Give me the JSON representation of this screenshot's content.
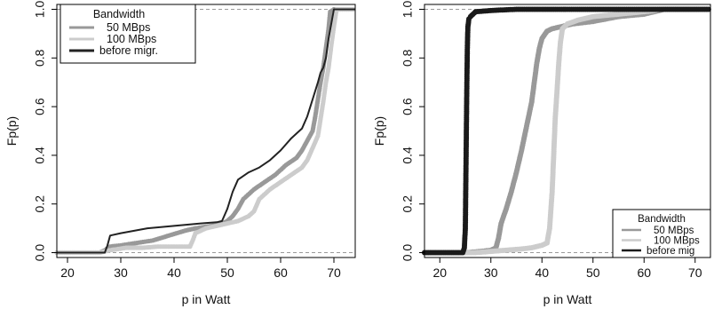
{
  "chart_data": [
    {
      "type": "line",
      "xlabel": "p in Watt",
      "ylabel": "Fp(p)",
      "xlim": [
        18,
        74
      ],
      "ylim": [
        -0.02,
        1.02
      ],
      "xticks": [
        20,
        30,
        40,
        50,
        60,
        70
      ],
      "yticks": [
        0.0,
        0.2,
        0.4,
        0.6,
        0.8,
        1.0
      ],
      "xtick_labels": [
        "20",
        "30",
        "40",
        "50",
        "60",
        "70"
      ],
      "ytick_labels": [
        "0.0",
        "0.2",
        "0.4",
        "0.6",
        "0.8",
        "1.0"
      ],
      "hlines": [
        0,
        1
      ],
      "legend": {
        "title": "Bandwidth",
        "placement": "top-left",
        "entries": [
          "50 MBps",
          "100 MBps",
          "before migr."
        ]
      },
      "series": [
        {
          "name": "50 MBps",
          "color": "#999999",
          "marker": "point",
          "x": [
            18,
            26,
            27,
            28,
            30,
            33,
            36,
            39,
            42,
            44,
            47,
            49,
            50,
            51,
            52,
            53,
            55,
            57,
            59,
            61,
            63,
            64,
            65,
            66,
            66.5,
            67,
            67.5,
            68,
            68.5,
            69,
            69.3,
            70,
            72,
            74
          ],
          "y": [
            0,
            0,
            0.01,
            0.025,
            0.03,
            0.04,
            0.05,
            0.07,
            0.09,
            0.1,
            0.11,
            0.12,
            0.13,
            0.15,
            0.18,
            0.22,
            0.26,
            0.29,
            0.32,
            0.36,
            0.39,
            0.42,
            0.46,
            0.5,
            0.56,
            0.63,
            0.7,
            0.76,
            0.84,
            0.92,
            0.99,
            1.0,
            1.0,
            1.0
          ]
        },
        {
          "name": "100 MBps",
          "color": "#cccccc",
          "marker": "point",
          "x": [
            18,
            26,
            28,
            31,
            34,
            37,
            40,
            43,
            43.5,
            44,
            46,
            48,
            50,
            52,
            54,
            55,
            56,
            58,
            60,
            62,
            64,
            65,
            66,
            67,
            67.5,
            68,
            68.5,
            69,
            69.5,
            70,
            70.5,
            72,
            74
          ],
          "y": [
            0,
            0,
            0.01,
            0.02,
            0.02,
            0.025,
            0.025,
            0.025,
            0.05,
            0.08,
            0.1,
            0.11,
            0.12,
            0.13,
            0.15,
            0.17,
            0.22,
            0.26,
            0.29,
            0.32,
            0.35,
            0.38,
            0.43,
            0.48,
            0.55,
            0.62,
            0.7,
            0.76,
            0.85,
            0.93,
            1.0,
            1.0,
            1.0
          ]
        },
        {
          "name": "before migr.",
          "color": "#222222",
          "marker": "none",
          "x": [
            18,
            27,
            27.5,
            28,
            30,
            35,
            40,
            45,
            48,
            49,
            50,
            51,
            52,
            54,
            56,
            58,
            60,
            62,
            64,
            65,
            66,
            67,
            67.5,
            68,
            68.5,
            69,
            70,
            74
          ],
          "y": [
            0,
            0,
            0.03,
            0.07,
            0.08,
            0.1,
            0.11,
            0.12,
            0.125,
            0.13,
            0.18,
            0.25,
            0.3,
            0.33,
            0.35,
            0.38,
            0.42,
            0.47,
            0.51,
            0.56,
            0.63,
            0.7,
            0.74,
            0.76,
            0.8,
            0.88,
            1.0,
            1.0
          ]
        }
      ]
    },
    {
      "type": "line",
      "xlabel": "p in Watt",
      "ylabel": "Fp(p)",
      "xlim": [
        17,
        73
      ],
      "ylim": [
        -0.02,
        1.02
      ],
      "xticks": [
        20,
        30,
        40,
        50,
        60,
        70
      ],
      "yticks": [
        0.0,
        0.2,
        0.4,
        0.6,
        0.8,
        1.0
      ],
      "xtick_labels": [
        "20",
        "30",
        "40",
        "50",
        "60",
        "70"
      ],
      "ytick_labels": [
        "0.0",
        "0.2",
        "0.4",
        "0.6",
        "0.8",
        "1.0"
      ],
      "hlines": [
        0,
        1
      ],
      "legend": {
        "title": "Bandwidth",
        "placement": "bottom-right",
        "entries": [
          "50 MBps",
          "100 MBps",
          "before mig"
        ]
      },
      "series": [
        {
          "name": "50 MBps",
          "color": "#999999",
          "marker": "point",
          "x": [
            17,
            25,
            28,
            30,
            31,
            31.5,
            32,
            33,
            34,
            35,
            36,
            37,
            38,
            38.5,
            39,
            39.5,
            40,
            41,
            42,
            44,
            46,
            50,
            55,
            60,
            62,
            63,
            64,
            73
          ],
          "y": [
            0,
            0,
            0.005,
            0.01,
            0.02,
            0.06,
            0.12,
            0.18,
            0.25,
            0.33,
            0.42,
            0.52,
            0.62,
            0.7,
            0.78,
            0.84,
            0.88,
            0.91,
            0.92,
            0.93,
            0.94,
            0.95,
            0.97,
            0.98,
            0.99,
            0.995,
            1.0,
            1.0
          ]
        },
        {
          "name": "100 MBps",
          "color": "#cccccc",
          "marker": "point",
          "x": [
            17,
            27,
            30,
            33,
            36,
            38,
            40,
            41,
            41.5,
            42,
            42.3,
            42.6,
            43,
            43.3,
            43.6,
            44,
            45,
            47,
            50,
            55,
            60,
            62,
            63,
            73
          ],
          "y": [
            0,
            0,
            0.005,
            0.01,
            0.015,
            0.02,
            0.03,
            0.04,
            0.1,
            0.25,
            0.4,
            0.55,
            0.68,
            0.78,
            0.86,
            0.92,
            0.94,
            0.955,
            0.97,
            0.98,
            0.99,
            0.995,
            1.0,
            1.0
          ]
        },
        {
          "name": "before mig",
          "color": "#1a1a1a",
          "marker": "point",
          "x": [
            17,
            24.5,
            24.8,
            25.0,
            25.1,
            25.2,
            25.3,
            25.4,
            25.5,
            25.7,
            26,
            26.5,
            27,
            30,
            35,
            40,
            45,
            47,
            73
          ],
          "y": [
            0,
            0,
            0.02,
            0.1,
            0.3,
            0.5,
            0.7,
            0.85,
            0.93,
            0.96,
            0.97,
            0.98,
            0.99,
            0.995,
            1.0,
            1.0,
            1.0,
            1.0,
            1.0
          ]
        }
      ]
    }
  ]
}
